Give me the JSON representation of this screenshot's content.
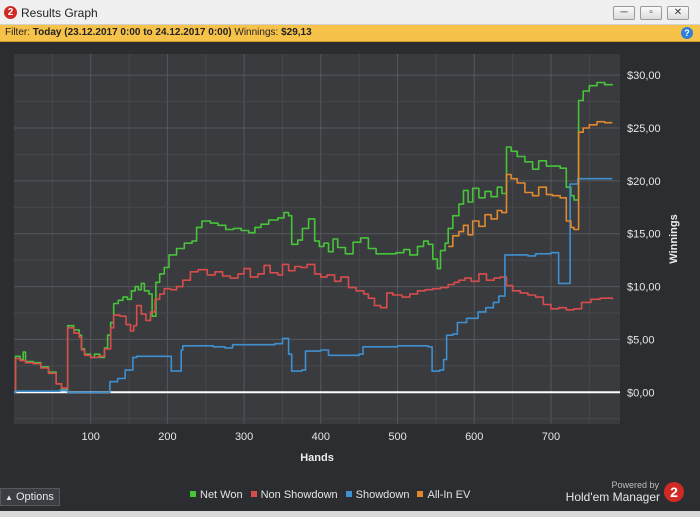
{
  "window": {
    "title": "Results Graph",
    "app_icon_label": "2",
    "controls": {
      "minimize": "─",
      "restore": "▫",
      "close": "✕"
    }
  },
  "filter_bar": {
    "prefix": "Filter:",
    "date_range": "Today (23.12.2017 0:00 to 24.12.2017 0:00)",
    "winnings_label": "Winnings:",
    "winnings_value": "$29,13",
    "help_icon": "?"
  },
  "chart_data": {
    "type": "line",
    "xlabel": "Hands",
    "ylabel": "Winnings",
    "xlim": [
      0,
      790
    ],
    "ylim": [
      -3,
      32
    ],
    "x_ticks": [
      100,
      200,
      300,
      400,
      500,
      600,
      700
    ],
    "x_tick_labels": [
      "100",
      "200",
      "300",
      "400",
      "500",
      "600",
      "700"
    ],
    "y_ticks": [
      0,
      5,
      10,
      15,
      20,
      25,
      30
    ],
    "y_tick_labels": [
      "$0,00",
      "$5,00",
      "$10,00",
      "$15,00",
      "$20,00",
      "$25,00",
      "$30,00"
    ],
    "grid": true,
    "legend_position": "bottom",
    "series": [
      {
        "name": "Net Won",
        "color": "#47c43a",
        "points": [
          [
            0,
            0
          ],
          [
            2,
            3.4
          ],
          [
            8,
            3.1
          ],
          [
            12,
            3.8
          ],
          [
            15,
            2.9
          ],
          [
            25,
            2.8
          ],
          [
            35,
            2.4
          ],
          [
            45,
            1.9
          ],
          [
            55,
            0.8
          ],
          [
            62,
            0.3
          ],
          [
            68,
            0.3
          ],
          [
            70,
            6.3
          ],
          [
            78,
            5.9
          ],
          [
            85,
            5.4
          ],
          [
            88,
            4.1
          ],
          [
            92,
            3.6
          ],
          [
            100,
            3.3
          ],
          [
            105,
            3.6
          ],
          [
            112,
            3.3
          ],
          [
            118,
            4.2
          ],
          [
            122,
            5.4
          ],
          [
            126,
            6.6
          ],
          [
            130,
            8.4
          ],
          [
            136,
            8.7
          ],
          [
            142,
            9.0
          ],
          [
            148,
            8.8
          ],
          [
            153,
            9.6
          ],
          [
            158,
            10.0
          ],
          [
            162,
            9.7
          ],
          [
            166,
            10.3
          ],
          [
            170,
            9.6
          ],
          [
            176,
            9.3
          ],
          [
            180,
            7.2
          ],
          [
            185,
            10.4
          ],
          [
            190,
            11.2
          ],
          [
            196,
            11.8
          ],
          [
            202,
            13.0
          ],
          [
            212,
            13.6
          ],
          [
            222,
            14.1
          ],
          [
            232,
            14.3
          ],
          [
            238,
            15.6
          ],
          [
            245,
            16.2
          ],
          [
            256,
            16.0
          ],
          [
            266,
            15.8
          ],
          [
            276,
            15.4
          ],
          [
            286,
            15.5
          ],
          [
            296,
            15.3
          ],
          [
            306,
            15.1
          ],
          [
            314,
            15.6
          ],
          [
            322,
            15.9
          ],
          [
            332,
            16.3
          ],
          [
            344,
            16.5
          ],
          [
            352,
            17.0
          ],
          [
            358,
            16.7
          ],
          [
            362,
            14.0
          ],
          [
            370,
            14.4
          ],
          [
            376,
            15.5
          ],
          [
            384,
            16.4
          ],
          [
            392,
            14.3
          ],
          [
            398,
            13.8
          ],
          [
            404,
            14.1
          ],
          [
            410,
            13.3
          ],
          [
            416,
            14.5
          ],
          [
            422,
            13.7
          ],
          [
            432,
            13.1
          ],
          [
            442,
            14.2
          ],
          [
            452,
            14.6
          ],
          [
            462,
            13.6
          ],
          [
            472,
            13.1
          ],
          [
            486,
            13.1
          ],
          [
            498,
            13.2
          ],
          [
            508,
            13.5
          ],
          [
            516,
            13.0
          ],
          [
            526,
            13.8
          ],
          [
            534,
            14.3
          ],
          [
            540,
            14.0
          ],
          [
            546,
            12.6
          ],
          [
            552,
            11.7
          ],
          [
            556,
            13.4
          ],
          [
            562,
            14.1
          ],
          [
            566,
            15.5
          ],
          [
            572,
            16.7
          ],
          [
            580,
            17.8
          ],
          [
            586,
            19.1
          ],
          [
            592,
            18.0
          ],
          [
            598,
            19.3
          ],
          [
            606,
            18.4
          ],
          [
            614,
            19.0
          ],
          [
            622,
            18.5
          ],
          [
            630,
            19.4
          ],
          [
            636,
            18.8
          ],
          [
            642,
            23.2
          ],
          [
            648,
            22.8
          ],
          [
            656,
            22.3
          ],
          [
            666,
            21.8
          ],
          [
            676,
            21.1
          ],
          [
            684,
            21.9
          ],
          [
            694,
            21.4
          ],
          [
            702,
            21.4
          ],
          [
            712,
            21.2
          ],
          [
            720,
            19.4
          ],
          [
            726,
            18.6
          ],
          [
            730,
            18.2
          ],
          [
            736,
            27.6
          ],
          [
            742,
            28.5
          ],
          [
            750,
            29.0
          ],
          [
            760,
            29.3
          ],
          [
            770,
            29.1
          ],
          [
            780,
            29.13
          ]
        ]
      },
      {
        "name": "Non Showdown",
        "color": "#d94c4c",
        "points": [
          [
            0,
            0
          ],
          [
            2,
            3.2
          ],
          [
            8,
            3.0
          ],
          [
            15,
            2.8
          ],
          [
            25,
            2.7
          ],
          [
            35,
            2.3
          ],
          [
            45,
            1.8
          ],
          [
            55,
            0.8
          ],
          [
            62,
            0.4
          ],
          [
            68,
            0.4
          ],
          [
            70,
            6.1
          ],
          [
            78,
            5.6
          ],
          [
            85,
            5.2
          ],
          [
            88,
            4.0
          ],
          [
            92,
            3.5
          ],
          [
            100,
            3.3
          ],
          [
            110,
            3.4
          ],
          [
            118,
            4.1
          ],
          [
            126,
            6.1
          ],
          [
            130,
            7.3
          ],
          [
            138,
            7.2
          ],
          [
            146,
            6.4
          ],
          [
            152,
            5.8
          ],
          [
            156,
            6.3
          ],
          [
            160,
            8.2
          ],
          [
            166,
            7.4
          ],
          [
            172,
            6.8
          ],
          [
            178,
            7.6
          ],
          [
            184,
            8.8
          ],
          [
            190,
            9.3
          ],
          [
            196,
            9.8
          ],
          [
            204,
            9.7
          ],
          [
            212,
            10.0
          ],
          [
            220,
            10.6
          ],
          [
            230,
            11.4
          ],
          [
            240,
            11.6
          ],
          [
            252,
            11.1
          ],
          [
            262,
            11.4
          ],
          [
            272,
            11.0
          ],
          [
            282,
            10.8
          ],
          [
            292,
            11.2
          ],
          [
            300,
            11.7
          ],
          [
            308,
            10.9
          ],
          [
            318,
            11.2
          ],
          [
            326,
            12.0
          ],
          [
            334,
            11.3
          ],
          [
            344,
            11.1
          ],
          [
            350,
            12.1
          ],
          [
            358,
            11.5
          ],
          [
            366,
            11.9
          ],
          [
            374,
            11.8
          ],
          [
            382,
            12.1
          ],
          [
            392,
            11.2
          ],
          [
            400,
            10.9
          ],
          [
            408,
            11.1
          ],
          [
            418,
            10.5
          ],
          [
            426,
            10.9
          ],
          [
            436,
            9.9
          ],
          [
            446,
            9.6
          ],
          [
            456,
            9.3
          ],
          [
            462,
            8.9
          ],
          [
            470,
            8.2
          ],
          [
            478,
            8.0
          ],
          [
            486,
            9.4
          ],
          [
            494,
            9.2
          ],
          [
            506,
            9.0
          ],
          [
            516,
            9.3
          ],
          [
            526,
            9.6
          ],
          [
            536,
            9.7
          ],
          [
            546,
            9.8
          ],
          [
            556,
            9.9
          ],
          [
            566,
            10.2
          ],
          [
            574,
            10.4
          ],
          [
            580,
            10.6
          ],
          [
            588,
            10.8
          ],
          [
            596,
            10.5
          ],
          [
            606,
            11.2
          ],
          [
            616,
            10.6
          ],
          [
            626,
            10.8
          ],
          [
            634,
            10.9
          ],
          [
            642,
            10.1
          ],
          [
            650,
            9.6
          ],
          [
            660,
            9.4
          ],
          [
            670,
            9.2
          ],
          [
            680,
            9.0
          ],
          [
            690,
            8.3
          ],
          [
            700,
            7.9
          ],
          [
            710,
            8.0
          ],
          [
            720,
            7.8
          ],
          [
            730,
            7.9
          ],
          [
            740,
            8.5
          ],
          [
            752,
            8.8
          ],
          [
            764,
            8.9
          ],
          [
            780,
            8.8
          ]
        ]
      },
      {
        "name": "Showdown",
        "color": "#3f90d0",
        "points": [
          [
            0,
            0
          ],
          [
            2,
            0.1
          ],
          [
            10,
            0.1
          ],
          [
            60,
            0.2
          ],
          [
            70,
            0
          ],
          [
            120,
            0
          ],
          [
            125,
            1.0
          ],
          [
            135,
            1.3
          ],
          [
            145,
            2.1
          ],
          [
            155,
            3.3
          ],
          [
            160,
            3.4
          ],
          [
            200,
            3.4
          ],
          [
            205,
            2.0
          ],
          [
            215,
            2.0
          ],
          [
            218,
            4.0
          ],
          [
            220,
            4.4
          ],
          [
            240,
            4.4
          ],
          [
            260,
            4.3
          ],
          [
            275,
            4.2
          ],
          [
            285,
            4.5
          ],
          [
            300,
            4.5
          ],
          [
            340,
            4.6
          ],
          [
            350,
            5.1
          ],
          [
            358,
            3.6
          ],
          [
            362,
            2.0
          ],
          [
            375,
            2.1
          ],
          [
            380,
            3.9
          ],
          [
            400,
            4.0
          ],
          [
            410,
            3.5
          ],
          [
            450,
            3.6
          ],
          [
            455,
            4.3
          ],
          [
            500,
            4.4
          ],
          [
            540,
            4.3
          ],
          [
            545,
            2.0
          ],
          [
            555,
            2.1
          ],
          [
            560,
            3.1
          ],
          [
            564,
            5.4
          ],
          [
            572,
            5.5
          ],
          [
            578,
            6.6
          ],
          [
            590,
            7.0
          ],
          [
            605,
            7.6
          ],
          [
            615,
            8.0
          ],
          [
            625,
            8.5
          ],
          [
            632,
            9.1
          ],
          [
            640,
            13.0
          ],
          [
            660,
            13.0
          ],
          [
            670,
            12.9
          ],
          [
            680,
            13.1
          ],
          [
            690,
            13.1
          ],
          [
            700,
            13.2
          ],
          [
            710,
            10.3
          ],
          [
            720,
            10.3
          ],
          [
            725,
            19.7
          ],
          [
            735,
            20.2
          ],
          [
            780,
            20.2
          ]
        ]
      },
      {
        "name": "All-In EV",
        "color": "#e2892f",
        "points": [
          [
            566,
            13.8
          ],
          [
            572,
            14.8
          ],
          [
            580,
            15.2
          ],
          [
            586,
            15.8
          ],
          [
            592,
            14.9
          ],
          [
            598,
            16.2
          ],
          [
            606,
            15.7
          ],
          [
            614,
            16.8
          ],
          [
            622,
            16.4
          ],
          [
            630,
            17.2
          ],
          [
            636,
            17.0
          ],
          [
            642,
            20.6
          ],
          [
            648,
            20.2
          ],
          [
            656,
            19.8
          ],
          [
            666,
            18.9
          ],
          [
            676,
            18.6
          ],
          [
            684,
            19.4
          ],
          [
            694,
            18.7
          ],
          [
            702,
            18.6
          ],
          [
            712,
            18.4
          ],
          [
            720,
            16.2
          ],
          [
            726,
            15.6
          ],
          [
            730,
            15.4
          ],
          [
            736,
            24.6
          ],
          [
            742,
            25.0
          ],
          [
            750,
            25.3
          ],
          [
            760,
            25.6
          ],
          [
            770,
            25.5
          ],
          [
            780,
            25.5
          ]
        ]
      }
    ]
  },
  "options_button": "Options",
  "branding": {
    "powered_by": "Powered by",
    "product": "Hold'em Manager",
    "logo": "2"
  }
}
